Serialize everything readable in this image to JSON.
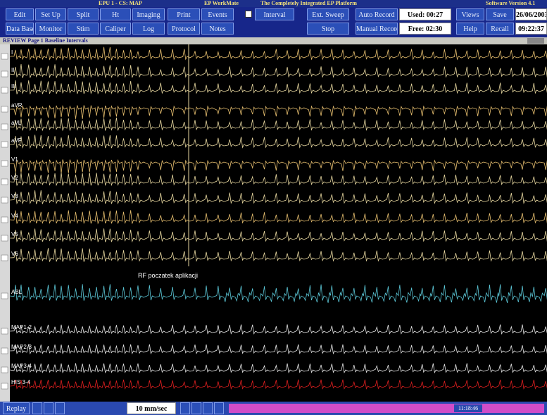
{
  "title_bar": {
    "left": "EPU 1 - CS: MAP",
    "center": "EP WorkMate",
    "subtitle": "The Completely Integrated EP Platform",
    "right": "Software Version 4.1"
  },
  "toolbar": {
    "row1": [
      "Edit",
      "Set Up",
      "Split",
      "Ht",
      "Imaging",
      "Print",
      "Events",
      "Interval",
      "Ext. Sweep",
      "Auto Record",
      "Used: 00:27",
      "Views",
      "Save",
      "26/06/2003"
    ],
    "row2": [
      "Data Base",
      "Monitor",
      "Stim",
      "Caliper",
      "Log",
      "Protocol",
      "Notes",
      "Stop",
      "Manual Record",
      "Free: 02:30",
      "Help",
      "Recall",
      "09:22:37"
    ]
  },
  "panel_title": "REVIEW Page 1  Baseline Intervals",
  "channels": [
    "I",
    "II",
    "III",
    "aVR",
    "aVL",
    "aVF",
    "V1",
    "V2",
    "V3",
    "V4",
    "V5",
    "V6",
    "ABL",
    "MAP1-2",
    "MAP2-3",
    "MAP3-4",
    "HIS 3-4"
  ],
  "annotation": "RF poczatek aplikacji",
  "status_bar": {
    "replay": "Replay",
    "speed": "10 mm/sec",
    "time": "11:18:46"
  }
}
